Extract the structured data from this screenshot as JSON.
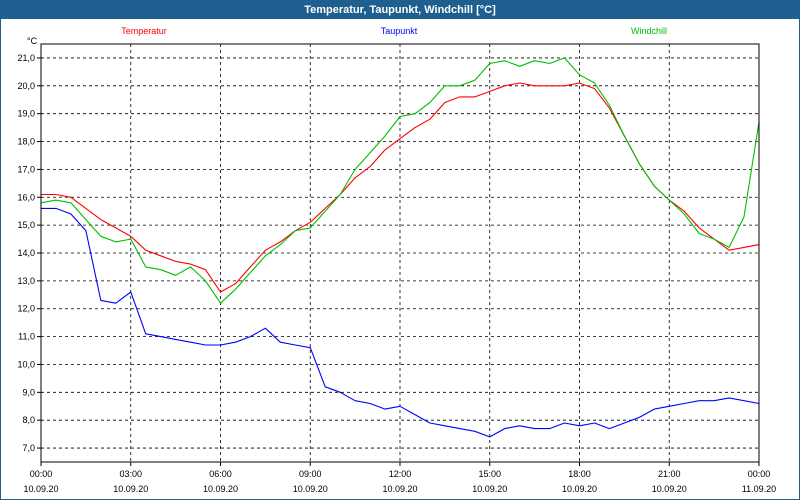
{
  "window": {
    "title": "Temperatur, Taupunkt, Windchill [°C]"
  },
  "colors": {
    "titlebar": "#1f5f8f",
    "temperature": "#ff0000",
    "dewpoint": "#0000ff",
    "windchill": "#00c000"
  },
  "chart_data": {
    "type": "line",
    "title": "Temperatur, Taupunkt, Windchill [°C]",
    "ylabel": "°C",
    "ylim": [
      6.5,
      21.5
    ],
    "yticks": [
      7.0,
      8.0,
      9.0,
      10.0,
      11.0,
      12.0,
      13.0,
      14.0,
      15.0,
      16.0,
      17.0,
      18.0,
      19.0,
      20.0,
      21.0
    ],
    "ytick_labels": [
      "7,0",
      "8,0",
      "9,0",
      "10,0",
      "11,0",
      "12,0",
      "13,0",
      "14,0",
      "15,0",
      "16,0",
      "17,0",
      "18,0",
      "19,0",
      "20,0",
      "21,0"
    ],
    "xlim": [
      0,
      24
    ],
    "xticks": [
      {
        "x": 0,
        "time": "00:00",
        "date": "10.09.20"
      },
      {
        "x": 3,
        "time": "03:00",
        "date": "10.09.20"
      },
      {
        "x": 6,
        "time": "06:00",
        "date": "10.09.20"
      },
      {
        "x": 9,
        "time": "09:00",
        "date": "10.09.20"
      },
      {
        "x": 12,
        "time": "12:00",
        "date": "10.09.20"
      },
      {
        "x": 15,
        "time": "15:00",
        "date": "10.09.20"
      },
      {
        "x": 18,
        "time": "18:00",
        "date": "10.09.20"
      },
      {
        "x": 21,
        "time": "21:00",
        "date": "10.09.20"
      },
      {
        "x": 24,
        "time": "00:00",
        "date": "11.09.20"
      }
    ],
    "grid": true,
    "legend": "top",
    "series": [
      {
        "name": "Temperatur",
        "color": "#ff0000",
        "x": [
          0,
          0.5,
          1,
          1.5,
          2,
          2.5,
          3,
          3.5,
          4,
          4.5,
          5,
          5.5,
          6,
          6.5,
          7,
          7.5,
          8,
          8.5,
          9,
          9.5,
          10,
          10.5,
          11,
          11.5,
          12,
          12.5,
          13,
          13.5,
          14,
          14.5,
          15,
          15.5,
          16,
          16.5,
          17,
          17.5,
          18,
          18.5,
          19,
          19.5,
          20,
          20.5,
          21,
          21.5,
          22,
          22.5,
          23,
          23.5,
          24
        ],
        "y": [
          16.1,
          16.1,
          16.0,
          15.6,
          15.2,
          14.9,
          14.6,
          14.1,
          13.9,
          13.7,
          13.6,
          13.4,
          12.6,
          12.9,
          13.5,
          14.1,
          14.4,
          14.8,
          15.1,
          15.6,
          16.1,
          16.7,
          17.1,
          17.7,
          18.1,
          18.5,
          18.8,
          19.4,
          19.6,
          19.6,
          19.8,
          20.0,
          20.1,
          20.0,
          20.0,
          20.0,
          20.1,
          19.9,
          19.2,
          18.2,
          17.2,
          16.4,
          15.9,
          15.5,
          14.9,
          14.5,
          14.1,
          14.2,
          14.3
        ]
      },
      {
        "name": "Taupunkt",
        "color": "#0000ff",
        "x": [
          0,
          0.5,
          1,
          1.5,
          2,
          2.5,
          3,
          3.5,
          4,
          4.5,
          5,
          5.5,
          6,
          6.5,
          7,
          7.5,
          8,
          8.5,
          9,
          9.5,
          10,
          10.5,
          11,
          11.5,
          12,
          12.5,
          13,
          13.5,
          14,
          14.5,
          15,
          15.5,
          16,
          16.5,
          17,
          17.5,
          18,
          18.5,
          19,
          19.5,
          20,
          20.5,
          21,
          21.5,
          22,
          22.5,
          23,
          23.5,
          24
        ],
        "y": [
          15.6,
          15.6,
          15.4,
          14.8,
          12.3,
          12.2,
          12.6,
          11.1,
          11.0,
          10.9,
          10.8,
          10.7,
          10.7,
          10.8,
          11.0,
          11.3,
          10.8,
          10.7,
          10.6,
          9.2,
          9.0,
          8.7,
          8.6,
          8.4,
          8.5,
          8.2,
          7.9,
          7.8,
          7.7,
          7.6,
          7.4,
          7.7,
          7.8,
          7.7,
          7.7,
          7.9,
          7.8,
          7.9,
          7.7,
          7.9,
          8.1,
          8.4,
          8.5,
          8.6,
          8.7,
          8.7,
          8.8,
          8.7,
          8.6
        ]
      },
      {
        "name": "Windchill",
        "color": "#00c000",
        "x": [
          0,
          0.5,
          1,
          1.5,
          2,
          2.5,
          3,
          3.5,
          4,
          4.5,
          5,
          5.5,
          6,
          6.5,
          7,
          7.5,
          8,
          8.5,
          9,
          9.5,
          10,
          10.5,
          11,
          11.5,
          12,
          12.5,
          13,
          13.5,
          14,
          14.5,
          15,
          15.5,
          16,
          16.5,
          17,
          17.5,
          18,
          18.5,
          19,
          19.5,
          20,
          20.5,
          21,
          21.5,
          22,
          22.5,
          23,
          23.5,
          24
        ],
        "y": [
          15.8,
          15.9,
          15.8,
          15.2,
          14.6,
          14.4,
          14.5,
          13.5,
          13.4,
          13.2,
          13.5,
          13.0,
          12.2,
          12.7,
          13.3,
          13.9,
          14.3,
          14.8,
          14.9,
          15.5,
          16.1,
          17.0,
          17.6,
          18.2,
          18.9,
          19.0,
          19.4,
          20.0,
          20.0,
          20.2,
          20.8,
          20.9,
          20.7,
          20.9,
          20.8,
          21.0,
          20.4,
          20.1,
          19.3,
          18.2,
          17.2,
          16.4,
          15.9,
          15.4,
          14.7,
          14.5,
          14.2,
          15.3,
          18.7
        ]
      }
    ]
  }
}
